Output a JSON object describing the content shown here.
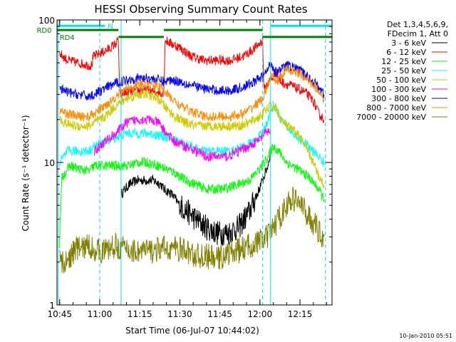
{
  "chart_data": {
    "type": "line",
    "title": "HESSI Observing Summary Count Rates",
    "xlabel": "Start Time (06-Jul-07 10:44:02)",
    "ylabel": "Count Rate (s⁻¹ detector⁻¹)",
    "x_unit": "minutes after 10:44:02",
    "xlim": [
      0,
      103
    ],
    "ylim": [
      1,
      100
    ],
    "y_scale": "log",
    "x_ticks": [
      {
        "t": 1,
        "label": "10:45"
      },
      {
        "t": 16,
        "label": "11:00"
      },
      {
        "t": 31,
        "label": "11:15"
      },
      {
        "t": 46,
        "label": "11:30"
      },
      {
        "t": 61,
        "label": "11:45"
      },
      {
        "t": 76,
        "label": "12:00"
      },
      {
        "t": 91,
        "label": "12:15"
      }
    ],
    "y_ticks": [
      {
        "value": 1,
        "label": "1"
      },
      {
        "value": 10,
        "label": "10"
      },
      {
        "value": 100,
        "label": "100"
      }
    ],
    "legend_header": [
      "Det 1,3,4,5,6,9,",
      "FDecim 1, Att 0"
    ],
    "legend_placement": "right",
    "flags": [
      {
        "name": "N",
        "color": "#00e5ee",
        "level": 91,
        "segments": [
          [
            0,
            18
          ],
          [
            80,
            103
          ]
        ],
        "label_t": 19
      },
      {
        "name": "RD0",
        "color": "#008000",
        "level": 85,
        "segments": [
          [
            0,
            23
          ],
          [
            40,
            77
          ]
        ],
        "label_t": -2
      },
      {
        "name": "RD4",
        "color": "#008000",
        "level": 76,
        "segments": [
          [
            23,
            40
          ],
          [
            77,
            103
          ]
        ],
        "label_t": 1
      }
    ],
    "vlines": [
      {
        "t": 0.5,
        "color": "#00e5ee",
        "style": "solid"
      },
      {
        "t": 16,
        "color": "#00e5ee",
        "style": "dashed"
      },
      {
        "t": 24,
        "color": "#00e5ee",
        "style": "solid"
      },
      {
        "t": 77,
        "color": "#00e5ee",
        "style": "dashed"
      },
      {
        "t": 80,
        "color": "#00e5ee",
        "style": "solid"
      },
      {
        "t": 100.5,
        "color": "#00e5ee",
        "style": "dashed"
      }
    ],
    "series": [
      {
        "name": "3 - 6 keV",
        "color": "#000000",
        "points": [
          [
            24,
            6
          ],
          [
            27,
            7
          ],
          [
            30,
            7.5
          ],
          [
            33,
            7.5
          ],
          [
            36,
            7.5
          ],
          [
            39,
            7
          ],
          [
            40,
            6.5
          ],
          [
            43,
            6
          ],
          [
            46,
            5
          ],
          [
            49,
            4.5
          ],
          [
            52,
            4
          ],
          [
            56,
            3.5
          ],
          [
            60,
            3.2
          ],
          [
            64,
            3.2
          ],
          [
            68,
            3.5
          ],
          [
            72,
            4.5
          ],
          [
            75,
            6
          ],
          [
            77,
            7.5
          ],
          [
            79,
            9.5
          ],
          [
            80,
            12
          ]
        ]
      },
      {
        "name": "6 - 12 keV",
        "color": "#ff0000",
        "points": [
          [
            1,
            58
          ],
          [
            4,
            52
          ],
          [
            8,
            50
          ],
          [
            12,
            48
          ],
          [
            13,
            48
          ],
          [
            13.5,
            55
          ],
          [
            16,
            58
          ],
          [
            19,
            62
          ],
          [
            22,
            68
          ],
          [
            23,
            72
          ],
          [
            23.5,
            30
          ],
          [
            26,
            31
          ],
          [
            30,
            32
          ],
          [
            34,
            32
          ],
          [
            38,
            31
          ],
          [
            40,
            31
          ],
          [
            40.5,
            72
          ],
          [
            43,
            68
          ],
          [
            46,
            64
          ],
          [
            50,
            56
          ],
          [
            55,
            52
          ],
          [
            60,
            52
          ],
          [
            65,
            52
          ],
          [
            70,
            56
          ],
          [
            74,
            63
          ],
          [
            77,
            72
          ],
          [
            77.5,
            32
          ],
          [
            79,
            36
          ],
          [
            81,
            40
          ],
          [
            82,
            44
          ],
          [
            83,
            38
          ],
          [
            85,
            36
          ],
          [
            87,
            35
          ],
          [
            90,
            33
          ],
          [
            93,
            31
          ],
          [
            96,
            27
          ],
          [
            98,
            22
          ],
          [
            100,
            20
          ]
        ]
      },
      {
        "name": "12 - 25 keV",
        "color": "#00ff00",
        "points": [
          [
            1,
            3
          ],
          [
            2,
            8
          ],
          [
            5,
            9.5
          ],
          [
            8,
            9
          ],
          [
            12,
            8.7
          ],
          [
            14,
            9.5
          ],
          [
            16,
            9.5
          ],
          [
            19,
            9.5
          ],
          [
            22,
            9.5
          ],
          [
            24,
            9.5
          ],
          [
            27,
            9.5
          ],
          [
            30,
            10
          ],
          [
            34,
            10
          ],
          [
            38,
            9.5
          ],
          [
            41,
            9
          ],
          [
            44,
            8.5
          ],
          [
            48,
            7.5
          ],
          [
            52,
            7
          ],
          [
            56,
            6.5
          ],
          [
            62,
            6.5
          ],
          [
            68,
            7
          ],
          [
            72,
            7.5
          ],
          [
            76,
            9
          ],
          [
            79,
            11
          ],
          [
            81,
            13
          ],
          [
            83,
            12
          ],
          [
            86,
            10
          ],
          [
            90,
            9
          ],
          [
            94,
            8
          ],
          [
            98,
            6.5
          ],
          [
            100,
            5.5
          ]
        ]
      },
      {
        "name": "25 - 50 keV",
        "color": "#00ffff",
        "points": [
          [
            1,
            10
          ],
          [
            4,
            12
          ],
          [
            8,
            12
          ],
          [
            12,
            12
          ],
          [
            14,
            13
          ],
          [
            18,
            14
          ],
          [
            22,
            15
          ],
          [
            26,
            16
          ],
          [
            30,
            16
          ],
          [
            34,
            16
          ],
          [
            38,
            15.5
          ],
          [
            42,
            15
          ],
          [
            46,
            14
          ],
          [
            50,
            13
          ],
          [
            54,
            12
          ],
          [
            58,
            12
          ],
          [
            62,
            12
          ],
          [
            66,
            12
          ],
          [
            70,
            13
          ],
          [
            74,
            14
          ],
          [
            77,
            16
          ],
          [
            79,
            20
          ],
          [
            81,
            25
          ],
          [
            82,
            24
          ],
          [
            84,
            20
          ],
          [
            87,
            17
          ],
          [
            90,
            15
          ],
          [
            94,
            13
          ],
          [
            98,
            11
          ],
          [
            100,
            10
          ]
        ]
      },
      {
        "name": "50 - 100 keV",
        "color": "#cccc00",
        "points": [
          [
            1,
            20
          ],
          [
            4,
            18.5
          ],
          [
            8,
            18
          ],
          [
            12,
            18
          ],
          [
            14,
            19
          ],
          [
            18,
            21
          ],
          [
            22,
            25
          ],
          [
            26,
            28
          ],
          [
            30,
            30
          ],
          [
            34,
            30
          ],
          [
            38,
            28
          ],
          [
            41,
            24
          ],
          [
            44,
            21
          ],
          [
            48,
            19
          ],
          [
            52,
            18
          ],
          [
            56,
            18
          ],
          [
            60,
            18
          ],
          [
            64,
            18
          ],
          [
            68,
            18
          ],
          [
            72,
            19
          ],
          [
            76,
            21
          ],
          [
            78,
            23
          ],
          [
            80,
            25
          ],
          [
            82,
            24
          ],
          [
            84,
            20
          ],
          [
            86,
            18
          ],
          [
            88,
            17
          ],
          [
            90,
            16
          ],
          [
            92,
            14
          ],
          [
            95,
            11
          ],
          [
            98,
            8
          ],
          [
            100,
            7
          ]
        ]
      },
      {
        "name": "100 - 300 keV",
        "color": "#ff00ff",
        "points": [
          [
            14,
            12
          ],
          [
            18,
            14
          ],
          [
            22,
            16
          ],
          [
            26,
            19
          ],
          [
            30,
            20
          ],
          [
            34,
            20
          ],
          [
            38,
            19
          ],
          [
            41,
            16
          ],
          [
            44,
            14
          ],
          [
            48,
            13
          ],
          [
            52,
            12
          ],
          [
            56,
            11
          ],
          [
            60,
            11
          ],
          [
            64,
            11
          ],
          [
            68,
            12
          ],
          [
            72,
            13
          ],
          [
            76,
            14.5
          ],
          [
            78,
            16
          ],
          [
            80,
            17
          ]
        ]
      },
      {
        "name": "300 - 800 keV",
        "color": "#0000ff",
        "points": [
          [
            1,
            33
          ],
          [
            4,
            31
          ],
          [
            8,
            30
          ],
          [
            12,
            29
          ],
          [
            14,
            30
          ],
          [
            18,
            33
          ],
          [
            22,
            36
          ],
          [
            26,
            38
          ],
          [
            30,
            39
          ],
          [
            34,
            39
          ],
          [
            38,
            38
          ],
          [
            40,
            37
          ],
          [
            43,
            38
          ],
          [
            46,
            37
          ],
          [
            50,
            35
          ],
          [
            55,
            33
          ],
          [
            60,
            32
          ],
          [
            65,
            32
          ],
          [
            70,
            34
          ],
          [
            74,
            37
          ],
          [
            77,
            40
          ],
          [
            79,
            45
          ],
          [
            80,
            50
          ],
          [
            82,
            43
          ],
          [
            84,
            45
          ],
          [
            86,
            48
          ],
          [
            88,
            47
          ],
          [
            91,
            44
          ],
          [
            94,
            40
          ],
          [
            98,
            34
          ],
          [
            100,
            30
          ]
        ]
      },
      {
        "name": "800 - 7000 keV",
        "color": "#ff8c00",
        "points": [
          [
            1,
            23
          ],
          [
            4,
            22
          ],
          [
            8,
            21
          ],
          [
            12,
            21
          ],
          [
            14,
            22
          ],
          [
            18,
            25
          ],
          [
            22,
            29
          ],
          [
            26,
            33
          ],
          [
            30,
            35
          ],
          [
            34,
            35
          ],
          [
            38,
            34
          ],
          [
            40,
            32
          ],
          [
            43,
            28
          ],
          [
            46,
            25
          ],
          [
            50,
            23
          ],
          [
            55,
            21
          ],
          [
            60,
            21
          ],
          [
            65,
            21
          ],
          [
            70,
            22
          ],
          [
            74,
            25
          ],
          [
            77,
            28
          ],
          [
            79,
            35
          ],
          [
            80,
            40
          ],
          [
            82,
            37
          ],
          [
            84,
            40
          ],
          [
            86,
            45
          ],
          [
            88,
            44
          ],
          [
            91,
            42
          ],
          [
            94,
            38
          ],
          [
            98,
            32
          ],
          [
            100,
            28
          ]
        ]
      },
      {
        "name": "7000 - 20000 keV",
        "color": "#808000",
        "points": [
          [
            1,
            2
          ],
          [
            3,
            1.9
          ],
          [
            5,
            2.2
          ],
          [
            7,
            2.5
          ],
          [
            9,
            2.5
          ],
          [
            12,
            2.6
          ],
          [
            15,
            2.4
          ],
          [
            18,
            2.4
          ],
          [
            22,
            2.6
          ],
          [
            25,
            2.5
          ],
          [
            28,
            2.4
          ],
          [
            32,
            2.4
          ],
          [
            36,
            2.4
          ],
          [
            40,
            2.5
          ],
          [
            44,
            2.5
          ],
          [
            48,
            2.4
          ],
          [
            52,
            2.2
          ],
          [
            56,
            2.2
          ],
          [
            60,
            2.1
          ],
          [
            64,
            2.3
          ],
          [
            68,
            2.4
          ],
          [
            72,
            2.6
          ],
          [
            76,
            2.8
          ],
          [
            79,
            3
          ],
          [
            81,
            3.5
          ],
          [
            83,
            4
          ],
          [
            86,
            5
          ],
          [
            88,
            5.5
          ],
          [
            90,
            5.5
          ],
          [
            93,
            4.5
          ],
          [
            96,
            3.8
          ],
          [
            98,
            3.3
          ],
          [
            100,
            3
          ]
        ]
      }
    ],
    "footer_timestamp": "10-Jan-2010 05:51"
  }
}
